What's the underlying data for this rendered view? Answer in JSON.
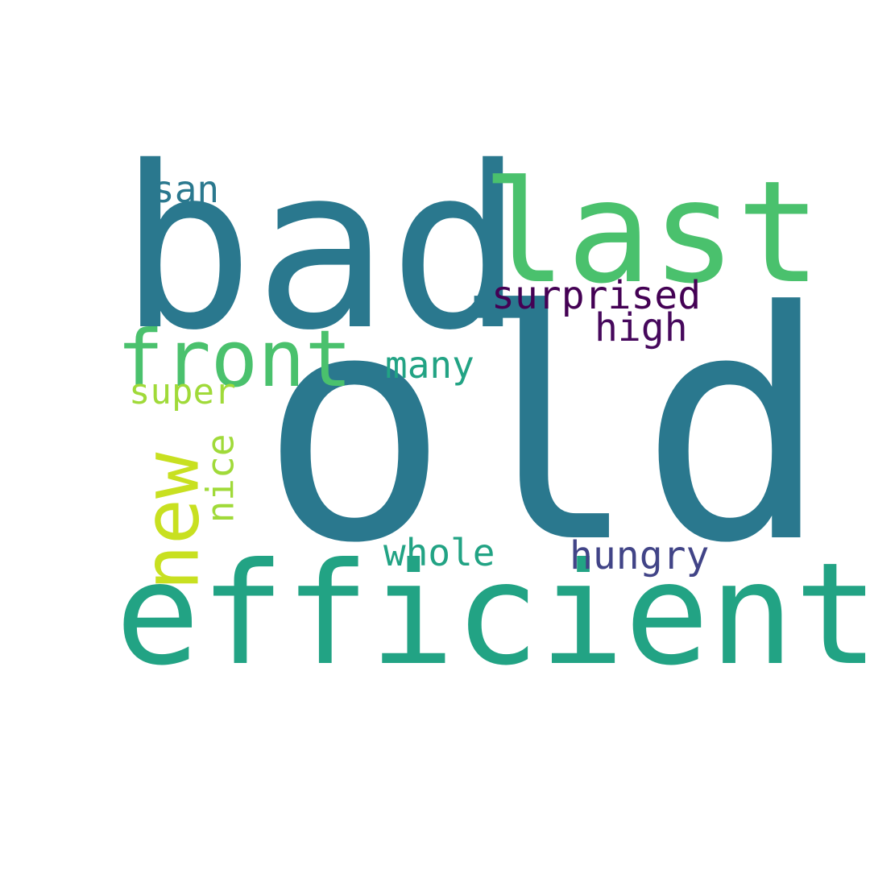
{
  "words": {
    "old": {
      "text": "old",
      "color": "#2a788e"
    },
    "bad": {
      "text": "bad",
      "color": "#2a788e"
    },
    "efficient": {
      "text": "efficient",
      "color": "#22a384"
    },
    "last": {
      "text": "last",
      "color": "#4ac16d"
    },
    "front": {
      "text": "front",
      "color": "#4ac16d"
    },
    "new": {
      "text": "new",
      "color": "#c8e020"
    },
    "surprised": {
      "text": "surprised",
      "color": "#440154"
    },
    "high": {
      "text": "high",
      "color": "#46085c"
    },
    "hungry": {
      "text": "hungry",
      "color": "#414487"
    },
    "many": {
      "text": "many",
      "color": "#22a384"
    },
    "whole": {
      "text": "whole",
      "color": "#22a384"
    },
    "san": {
      "text": "san",
      "color": "#2a788e"
    },
    "super": {
      "text": "super",
      "color": "#a0da39"
    },
    "nice": {
      "text": "nice",
      "color": "#a0da39"
    }
  }
}
